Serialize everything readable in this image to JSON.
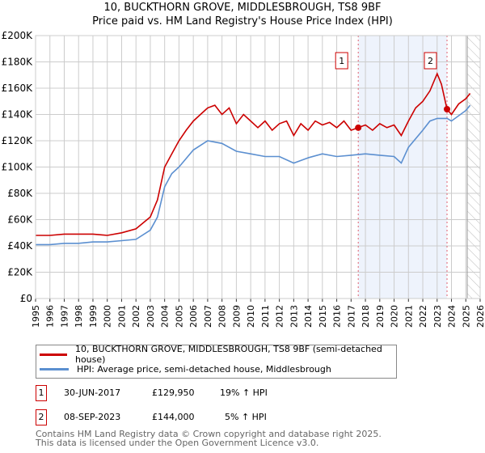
{
  "chart_data": {
    "type": "line",
    "title": "10, BUCKTHORN GROVE, MIDDLESBROUGH, TS8 9BF",
    "subtitle": "Price paid vs. HM Land Registry's House Price Index (HPI)",
    "xlim": [
      1995,
      2026
    ],
    "ylim": [
      0,
      200000
    ],
    "grid": true,
    "xticks": [
      "1995",
      "1996",
      "1997",
      "1998",
      "1999",
      "2000",
      "2001",
      "2002",
      "2003",
      "2004",
      "2005",
      "2006",
      "2007",
      "2008",
      "2009",
      "2010",
      "2011",
      "2012",
      "2013",
      "2014",
      "2015",
      "2016",
      "2017",
      "2018",
      "2019",
      "2020",
      "2021",
      "2022",
      "2023",
      "2024",
      "2025",
      "2026"
    ],
    "yticks": [
      {
        "v": 0,
        "label": "£0"
      },
      {
        "v": 20000,
        "label": "£20K"
      },
      {
        "v": 40000,
        "label": "£40K"
      },
      {
        "v": 60000,
        "label": "£60K"
      },
      {
        "v": 80000,
        "label": "£80K"
      },
      {
        "v": 100000,
        "label": "£100K"
      },
      {
        "v": 120000,
        "label": "£120K"
      },
      {
        "v": 140000,
        "label": "£140K"
      },
      {
        "v": 160000,
        "label": "£160K"
      },
      {
        "v": 180000,
        "label": "£180K"
      },
      {
        "v": 200000,
        "label": "£200K"
      }
    ],
    "series": [
      {
        "name": "10, BUCKTHORN GROVE, MIDDLESBROUGH, TS8 9BF (semi-detached house)",
        "color": "#cc0000",
        "x": [
          1995,
          1996,
          1997,
          1998,
          1999,
          2000,
          2001,
          2002,
          2003,
          2003.5,
          2004,
          2004.5,
          2005,
          2005.5,
          2006,
          2006.5,
          2007,
          2007.5,
          2008,
          2008.5,
          2009,
          2009.5,
          2010,
          2010.5,
          2011,
          2011.5,
          2012,
          2012.5,
          2013,
          2013.5,
          2014,
          2014.5,
          2015,
          2015.5,
          2016,
          2016.5,
          2017,
          2017.5,
          2018,
          2018.5,
          2019,
          2019.5,
          2020,
          2020.5,
          2021,
          2021.5,
          2022,
          2022.5,
          2023,
          2023.3,
          2023.69,
          2024,
          2024.5,
          2025,
          2025.3
        ],
        "values": [
          48000,
          48000,
          49000,
          49000,
          49000,
          48000,
          50000,
          53000,
          62000,
          75000,
          100000,
          110000,
          120000,
          128000,
          135000,
          140000,
          145000,
          147000,
          140000,
          145000,
          133000,
          140000,
          135000,
          130000,
          135000,
          128000,
          133000,
          135000,
          124000,
          133000,
          128000,
          135000,
          132000,
          134000,
          130000,
          135000,
          128000,
          129950,
          132000,
          128000,
          133000,
          130000,
          132000,
          124000,
          135000,
          145000,
          150000,
          158000,
          171000,
          163000,
          144000,
          140000,
          148000,
          152000,
          156000
        ]
      },
      {
        "name": "HPI: Average price, semi-detached house, Middlesbrough",
        "color": "#5b8fd0",
        "x": [
          1995,
          1996,
          1997,
          1998,
          1999,
          2000,
          2001,
          2002,
          2003,
          2003.5,
          2004,
          2004.5,
          2005,
          2006,
          2007,
          2008,
          2009,
          2010,
          2011,
          2012,
          2013,
          2014,
          2015,
          2016,
          2017,
          2018,
          2019,
          2020,
          2020.5,
          2021,
          2022,
          2022.5,
          2023,
          2023.7,
          2024,
          2025,
          2025.3
        ],
        "values": [
          41000,
          41000,
          42000,
          42000,
          43000,
          43000,
          44000,
          45000,
          52000,
          62000,
          85000,
          95000,
          100000,
          113000,
          120000,
          118000,
          112000,
          110000,
          108000,
          108000,
          103000,
          107000,
          110000,
          108000,
          109000,
          110000,
          109000,
          108000,
          103000,
          115000,
          128000,
          135000,
          137000,
          137000,
          135000,
          143000,
          147000
        ]
      }
    ],
    "sales": [
      {
        "label": "1",
        "x": 2017.5,
        "value": 129950
      },
      {
        "label": "2",
        "x": 2023.69,
        "value": 144000
      }
    ],
    "shaded_range": [
      2017.5,
      2023.69
    ],
    "hatched_from": 2025.1
  },
  "legend": {
    "property": "10, BUCKTHORN GROVE, MIDDLESBROUGH, TS8 9BF (semi-detached house)",
    "hpi": "HPI: Average price, semi-detached house, Middlesbrough"
  },
  "transactions": [
    {
      "num": "1",
      "date": "30-JUN-2017",
      "price": "£129,950",
      "hpi": "19% ↑ HPI"
    },
    {
      "num": "2",
      "date": "08-SEP-2023",
      "price": "£144,000",
      "hpi": "5% ↑ HPI"
    }
  ],
  "footer": [
    "Contains HM Land Registry data © Crown copyright and database right 2025.",
    "This data is licensed under the Open Government Licence v3.0."
  ]
}
